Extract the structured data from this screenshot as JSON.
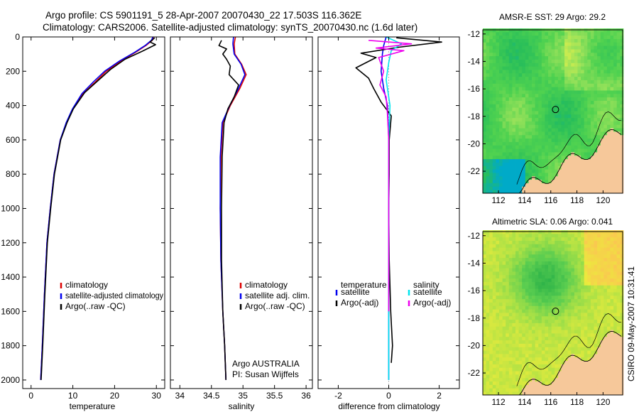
{
  "header": {
    "line1": "Argo profile: CS 5901191_5 28-Apr-2007 20070430_22 17.503S 116.362E",
    "line2": "Climatology: CARS2006. Satellite-adjusted climatology: synTS_20070430.nc (1.6d later)"
  },
  "footer": {
    "agency": "Argo AUSTRALIA",
    "pi": "PI: Susan Wijffels",
    "stamp": "CSIRO 09-May-2007 10:31:41"
  },
  "colors": {
    "climatology": "#dd0000",
    "satellite": "#0000ee",
    "argo": "#000000",
    "salinity_satellite": "#00e5ee",
    "salinity_argo": "#ee00ee",
    "land": "#f6c89a"
  },
  "chart_data": [
    {
      "id": "temperature",
      "type": "line",
      "xlabel": "temperature",
      "ylabel": "",
      "xlim": [
        -2,
        32
      ],
      "ylim": [
        2050,
        0
      ],
      "xticks": [
        0,
        10,
        20,
        30
      ],
      "yticks": [
        0,
        200,
        400,
        600,
        800,
        1000,
        1200,
        1400,
        1600,
        1800,
        2000
      ],
      "legend": {
        "position": "lower-right",
        "entries": [
          "climatology",
          "satellite-adjusted climatology",
          "Argo(..raw -QC)"
        ]
      },
      "series": [
        {
          "name": "climatology",
          "color": "#dd0000",
          "x": [
            29.3,
            29.0,
            27.5,
            25.0,
            21.5,
            18.0,
            15.5,
            12.5,
            10.0,
            8.5,
            7.0,
            5.5,
            4.6,
            3.8,
            3.2,
            2.7,
            2.3
          ],
          "y": [
            0,
            20,
            50,
            90,
            140,
            200,
            260,
            330,
            420,
            500,
            600,
            800,
            1000,
            1200,
            1500,
            1800,
            2000
          ]
        },
        {
          "name": "satellite-adjusted climatology",
          "color": "#0000ee",
          "x": [
            29.2,
            28.8,
            27.3,
            24.8,
            21.2,
            17.6,
            15.0,
            12.2,
            9.9,
            8.4,
            7.0,
            5.5,
            4.6,
            3.8,
            3.2,
            2.7,
            2.3
          ],
          "y": [
            0,
            20,
            50,
            90,
            140,
            200,
            260,
            330,
            420,
            500,
            600,
            800,
            1000,
            1200,
            1500,
            1800,
            2000
          ]
        },
        {
          "name": "Argo(..raw -QC)",
          "color": "#000000",
          "x": [
            29.6,
            28.5,
            29.8,
            26.5,
            22.5,
            19.0,
            16.0,
            12.8,
            10.1,
            8.6,
            7.1,
            5.6,
            4.7,
            3.9,
            3.3,
            2.8,
            2.4
          ],
          "y": [
            5,
            30,
            45,
            85,
            130,
            190,
            255,
            325,
            420,
            500,
            600,
            800,
            1000,
            1200,
            1500,
            1800,
            2000
          ]
        }
      ]
    },
    {
      "id": "salinity",
      "type": "line",
      "xlabel": "salinity",
      "ylabel": "",
      "xlim": [
        33.85,
        36.1
      ],
      "ylim": [
        2050,
        0
      ],
      "xticks": [
        34,
        34.5,
        35,
        35.5,
        36
      ],
      "xticklabels": [
        "34",
        "34.5",
        "35",
        "35.5",
        "36"
      ],
      "legend": {
        "position": "lower-right",
        "entries": [
          "climatology",
          "satellite adj. clim.",
          "Argo(..raw -QC)"
        ]
      },
      "series": [
        {
          "name": "climatology",
          "color": "#dd0000",
          "x": [
            34.88,
            34.86,
            34.87,
            34.98,
            35.05,
            34.95,
            34.8,
            34.68,
            34.65,
            34.64,
            34.65,
            34.68,
            34.71,
            34.73
          ],
          "y": [
            0,
            40,
            100,
            160,
            220,
            300,
            400,
            500,
            700,
            1000,
            1300,
            1600,
            1800,
            2000
          ]
        },
        {
          "name": "satellite adj. clim.",
          "color": "#0000ee",
          "x": [
            34.85,
            34.84,
            34.86,
            34.97,
            35.03,
            34.93,
            34.79,
            34.67,
            34.64,
            34.64,
            34.65,
            34.68,
            34.71,
            34.73
          ],
          "y": [
            0,
            40,
            100,
            160,
            220,
            300,
            400,
            500,
            700,
            1000,
            1300,
            1600,
            1800,
            2000
          ]
        },
        {
          "name": "Argo(..raw -QC)",
          "color": "#000000",
          "x": [
            34.66,
            34.62,
            34.74,
            34.68,
            34.74,
            34.8,
            34.78,
            34.93,
            34.86,
            34.76,
            34.7,
            34.67,
            34.66,
            34.66,
            34.68,
            34.71,
            34.73
          ],
          "y": [
            20,
            50,
            70,
            100,
            130,
            170,
            220,
            280,
            350,
            420,
            500,
            700,
            1000,
            1300,
            1600,
            1800,
            2000
          ]
        }
      ]
    },
    {
      "id": "difference",
      "type": "line",
      "xlabel": "difference from climatology",
      "ylabel": "",
      "xlim": [
        -2.8,
        2.8
      ],
      "ylim": [
        2050,
        0
      ],
      "xticks": [
        -2,
        0,
        2
      ],
      "legend": {
        "position": "lower-right",
        "groups": [
          "temperature",
          "salinity"
        ],
        "entries": [
          "satellite",
          "Argo(-adj)",
          "satellite",
          "Argo(-adj)"
        ]
      },
      "series": [
        {
          "name": "temperature satellite",
          "color": "#0000ee",
          "x": [
            -0.1,
            -0.2,
            -0.25,
            -0.3,
            -0.2,
            -0.05,
            0,
            0,
            0,
            0
          ],
          "y": [
            0,
            50,
            100,
            200,
            300,
            400,
            600,
            1000,
            1500,
            2000
          ]
        },
        {
          "name": "temperature Argo(-adj)",
          "color": "#000000",
          "x": [
            0.3,
            2.1,
            0.4,
            -1.1,
            -0.5,
            -1.3,
            -0.8,
            -0.6,
            -0.3,
            0.1,
            0.02,
            0.02,
            0.0,
            0.02,
            0.08,
            0.15,
            0.1
          ],
          "y": [
            5,
            30,
            60,
            95,
            120,
            180,
            240,
            300,
            380,
            460,
            600,
            800,
            1000,
            1300,
            1600,
            1800,
            1900
          ]
        },
        {
          "name": "salinity satellite",
          "color": "#00e5ee",
          "x": [
            -0.1,
            0.5,
            0.1,
            0.0,
            -0.1,
            0.05,
            0.0,
            0.0,
            0.0,
            0.0
          ],
          "y": [
            0,
            40,
            80,
            150,
            250,
            400,
            600,
            1000,
            1500,
            2000
          ]
        },
        {
          "name": "salinity Argo(-adj)",
          "color": "#ee00ee",
          "x": [
            -0.8,
            0.9,
            -0.5,
            0.6,
            -0.4,
            -0.2,
            -0.35,
            -0.1,
            -0.05,
            0.0,
            0.0,
            0.0
          ],
          "y": [
            20,
            40,
            65,
            80,
            120,
            200,
            280,
            350,
            450,
            600,
            1000,
            1600
          ]
        }
      ]
    },
    {
      "id": "sst-map",
      "type": "heatmap",
      "title": "AMSR-E SST: 29 Argo: 29.2",
      "xlim": [
        110.8,
        121.5
      ],
      "ylim": [
        -23.6,
        -11.7
      ],
      "xticks": [
        112,
        114,
        116,
        118,
        120
      ],
      "yticks": [
        -12,
        -14,
        -16,
        -18,
        -20,
        -22
      ],
      "marker": {
        "lon": 116.362,
        "lat": -17.503
      }
    },
    {
      "id": "sla-map",
      "type": "heatmap",
      "title": "Altimetric SLA: 0.06 Argo: 0.041",
      "xlim": [
        110.8,
        121.5
      ],
      "ylim": [
        -23.6,
        -11.7
      ],
      "xticks": [
        112,
        114,
        116,
        118,
        120
      ],
      "yticks": [
        -12,
        -14,
        -16,
        -18,
        -20,
        -22
      ],
      "marker": {
        "lon": 116.362,
        "lat": -17.503
      }
    }
  ]
}
